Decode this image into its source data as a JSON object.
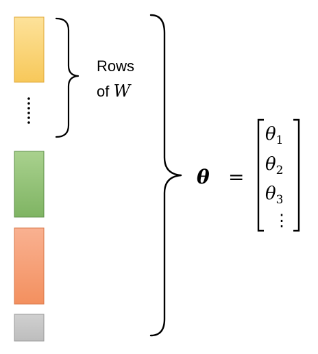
{
  "blocks": [
    {
      "id": "block-yellow",
      "fill_top": "#fde29a",
      "fill_bottom": "#f7c85a",
      "stroke": "#e0a83a"
    },
    {
      "id": "block-green",
      "fill_top": "#a9d18e",
      "fill_bottom": "#7fb463",
      "stroke": "#5e8f48"
    },
    {
      "id": "block-orange",
      "fill_top": "#f9b191",
      "fill_bottom": "#f3905f",
      "stroke": "#d9784a"
    },
    {
      "id": "block-gray",
      "fill_top": "#d0d0d0",
      "fill_bottom": "#bdbdbd",
      "stroke": "#9a9a9a"
    }
  ],
  "small_brace_label": {
    "line1": "Rows",
    "line2_prefix": "of ",
    "line2_var": "W"
  },
  "equation": {
    "lhs": "θ",
    "equals": "=",
    "vector": [
      {
        "base": "θ",
        "sub": "1"
      },
      {
        "base": "θ",
        "sub": "2"
      },
      {
        "base": "θ",
        "sub": "3"
      }
    ],
    "vector_ellipsis": "⋮"
  },
  "colors": {
    "ink": "#000000"
  }
}
